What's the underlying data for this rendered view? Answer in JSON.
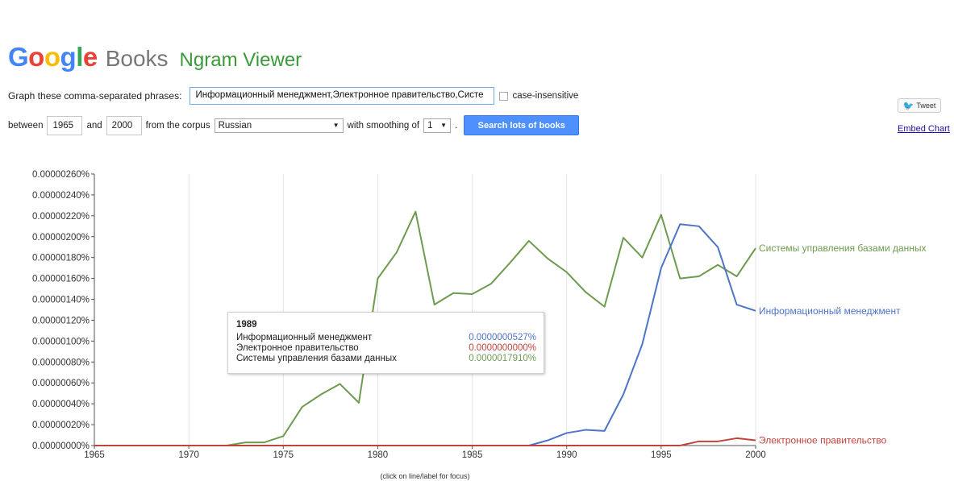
{
  "header": {
    "logo_google": "Google",
    "logo_books": "Books",
    "logo_ngram": "Ngram Viewer"
  },
  "form": {
    "phrases_label": "Graph these comma-separated phrases:",
    "phrases_value": "Информационный менеджмент,Электронное правительство,Систе",
    "case_label": "case-insensitive",
    "between_label": "between",
    "start_year": "1965",
    "and_label": "and",
    "end_year": "2000",
    "corpus_label": "from the corpus",
    "corpus_value": "Russian",
    "smoothing_label": "with smoothing of",
    "smoothing_value": "1",
    "search_button": "Search lots of books",
    "tweet_label": "Tweet",
    "embed_label": "Embed Chart"
  },
  "colors": {
    "blue": "#4e74c8",
    "red": "#c2433b",
    "green": "#6e9b4f",
    "google_g": "#4285f4",
    "google_o1": "#ea4335",
    "google_o2": "#fbbc05",
    "google_l": "#34a853"
  },
  "icons": {
    "tweet": "twitter-bird-icon",
    "dropdown": "caret-down-icon"
  },
  "chart_data": {
    "type": "line",
    "x": [
      1965,
      1966,
      1967,
      1968,
      1969,
      1970,
      1971,
      1972,
      1973,
      1974,
      1975,
      1976,
      1977,
      1978,
      1979,
      1980,
      1981,
      1982,
      1983,
      1984,
      1985,
      1986,
      1987,
      1988,
      1989,
      1990,
      1991,
      1992,
      1993,
      1994,
      1995,
      1996,
      1997,
      1998,
      1999,
      2000
    ],
    "xlim": [
      1965,
      2000
    ],
    "ylim": [
      0,
      2.6e-06
    ],
    "xticks": [
      "1965",
      "1970",
      "1975",
      "1980",
      "1985",
      "1990",
      "1995",
      "2000"
    ],
    "yticks": [
      "0.00000000%",
      "0.00000020%",
      "0.00000040%",
      "0.00000060%",
      "0.00000080%",
      "0.00000100%",
      "0.00000120%",
      "0.00000140%",
      "0.00000160%",
      "0.00000180%",
      "0.00000200%",
      "0.00000220%",
      "0.00000240%",
      "0.00000260%"
    ],
    "grid": true,
    "series": [
      {
        "name": "Системы управления базами данных",
        "color": "#6e9b4f",
        "values": [
          0,
          0,
          0,
          0,
          0,
          0,
          0,
          0,
          3e-08,
          3e-08,
          9e-08,
          3.7e-07,
          4.9e-07,
          5.9e-07,
          4.1e-07,
          1.6e-06,
          1.85e-06,
          2.24e-06,
          1.35e-06,
          1.46e-06,
          1.45e-06,
          1.55e-06,
          1.75e-06,
          1.96e-06,
          1.79e-06,
          1.66e-06,
          1.47e-06,
          1.33e-06,
          1.99e-06,
          1.8e-06,
          2.21e-06,
          1.6e-06,
          1.62e-06,
          1.73e-06,
          1.62e-06,
          1.89e-06
        ]
      },
      {
        "name": "Информационный менеджмент",
        "color": "#4e74c8",
        "values": [
          0,
          0,
          0,
          0,
          0,
          0,
          0,
          0,
          0,
          0,
          0,
          0,
          0,
          0,
          0,
          0,
          0,
          0,
          0,
          0,
          0,
          0,
          0,
          0,
          5e-08,
          1.2e-07,
          1.5e-07,
          1.4e-07,
          4.9e-07,
          9.7e-07,
          1.7e-06,
          2.12e-06,
          2.1e-06,
          1.9e-06,
          1.35e-06,
          1.29e-06
        ]
      },
      {
        "name": "Электронное правительство",
        "color": "#c2433b",
        "values": [
          0,
          0,
          0,
          0,
          0,
          0,
          0,
          0,
          0,
          0,
          0,
          0,
          0,
          0,
          0,
          0,
          0,
          0,
          0,
          0,
          0,
          0,
          0,
          0,
          0,
          0,
          0,
          0,
          0,
          0,
          0,
          0,
          4e-08,
          4e-08,
          7e-08,
          5e-08
        ]
      }
    ],
    "note": "(click on line/label for focus)",
    "tooltip": {
      "year": "1989",
      "rows": [
        {
          "name": "Информационный менеджмент",
          "value": "0.0000000527%",
          "color": "#4e74c8"
        },
        {
          "name": "Электронное правительство",
          "value": "0.0000000000%",
          "color": "#c2433b"
        },
        {
          "name": "Системы управления базами данных",
          "value": "0.0000017910%",
          "color": "#6e9b4f"
        }
      ]
    }
  }
}
